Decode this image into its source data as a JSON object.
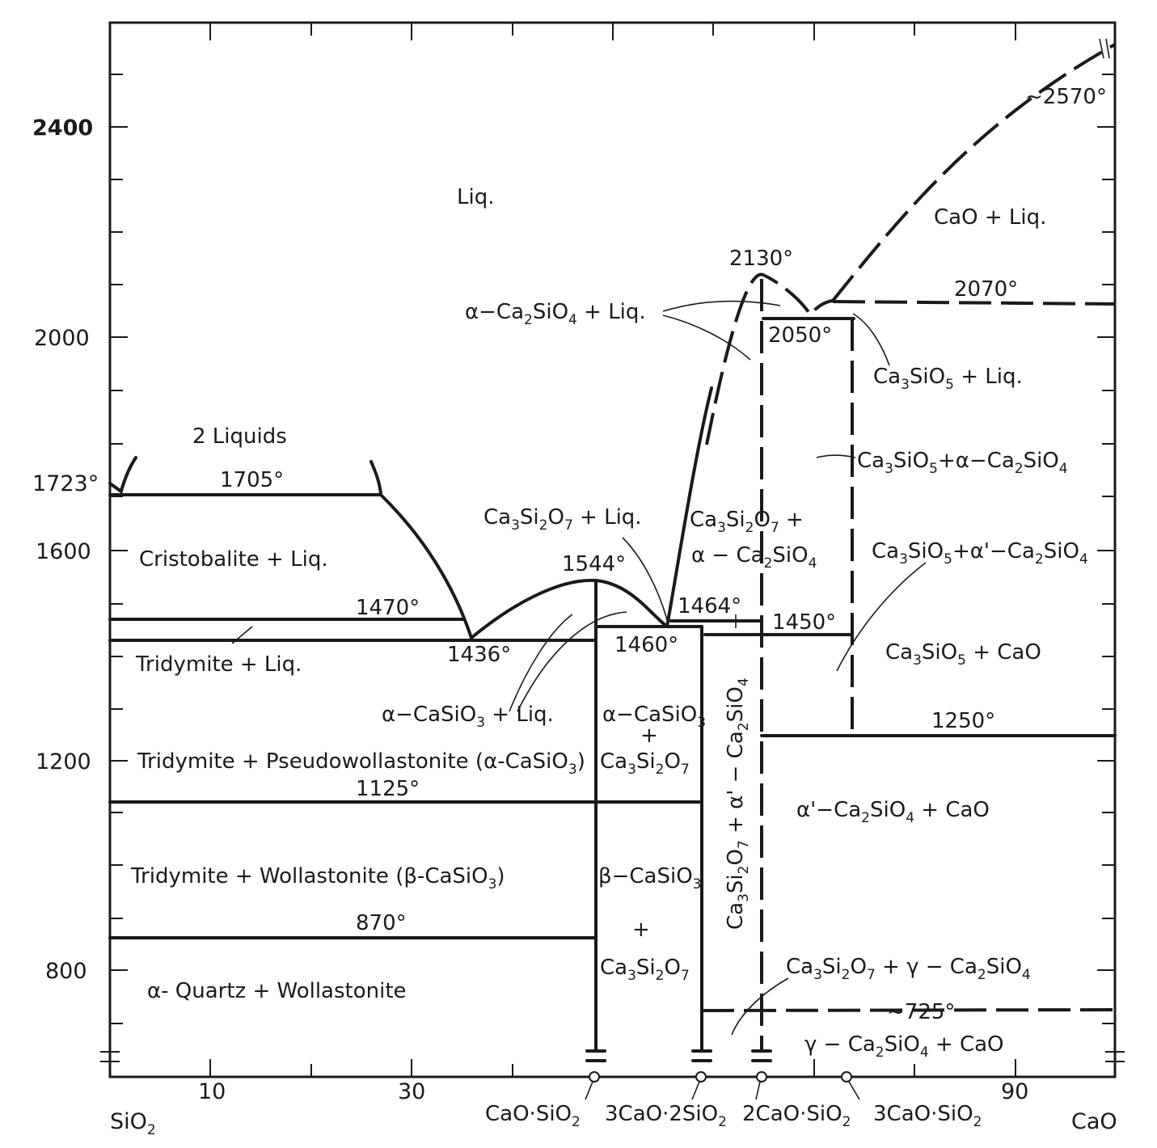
{
  "axis": {
    "y_ticks": [
      "2400",
      "2000",
      "1723°",
      "1600",
      "1200",
      "800"
    ],
    "x_ticks": [
      "10",
      "30",
      "90"
    ],
    "x_left": "SiO",
    "x_left_sub": "2",
    "x_right": "CaO"
  },
  "compounds": [
    {
      "pre": "CaO·SiO",
      "sub": "2",
      "post": ""
    },
    {
      "pre": "3CaO·2SiO",
      "sub": "2",
      "post": ""
    },
    {
      "pre": "2CaO·SiO",
      "sub": "2",
      "post": ""
    },
    {
      "pre": "3CaO·SiO",
      "sub": "2",
      "post": ""
    }
  ],
  "temps": {
    "t2570": "~2570°",
    "t2130": "2130°",
    "t2070": "2070°",
    "t2050": "2050°",
    "t1705": "1705°",
    "t1544": "1544°",
    "t1470": "1470°",
    "t1464": "1464°",
    "t1450": "1450°",
    "t1460": "1460°",
    "t1436": "1436°",
    "t1250": "1250°",
    "t1125": "1125°",
    "t870": "870°",
    "t725": "~725°"
  },
  "regions": {
    "liq": "Liq.",
    "cao_liq": "CaO + Liq.",
    "two_liquids": "2 Liquids",
    "cristobalite_liq": "Cristobalite + Liq.",
    "tridymite_liq": "Tridymite + Liq.",
    "tri_pseudo": "Tridymite + Pseudowollastonite (α-CaSiO",
    "tri_pseudo_sub": "3",
    "tri_pseudo_end": ")",
    "tri_wol": "Tridymite + Wollastonite (β-CaSiO",
    "tri_wol_sub": "3",
    "tri_wol_end": ")",
    "quartz_wol": "α- Quartz + Wollastonite",
    "cao_lower": "CaO",
    "plus": "+"
  }
}
